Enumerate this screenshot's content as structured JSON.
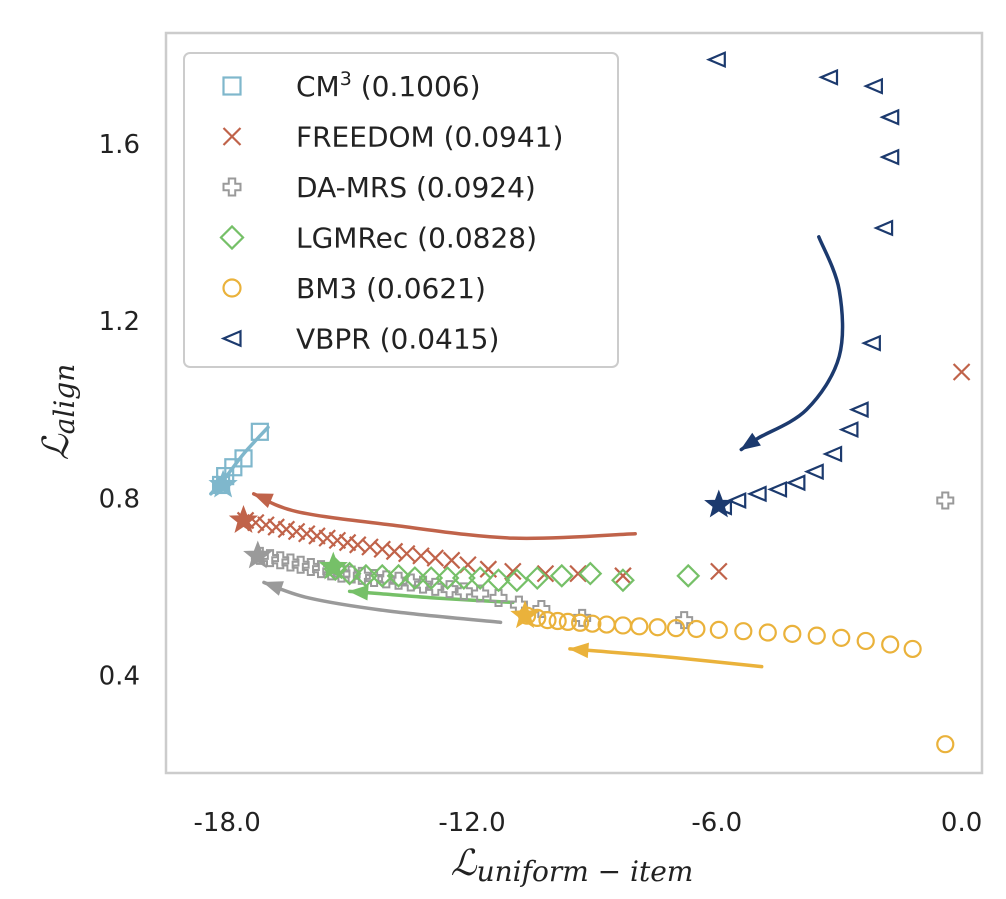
{
  "chart_data": {
    "type": "scatter",
    "title": "",
    "xlabel": {
      "main": "ℒ",
      "sub": "uniform − item"
    },
    "ylabel": {
      "main": "ℒ",
      "sub": "align"
    },
    "xlim": [
      -19.5,
      0.5
    ],
    "ylim": [
      0.18,
      1.85
    ],
    "xticks": [
      -18,
      -12,
      -6,
      0
    ],
    "xtick_labels": [
      "-18.0",
      "-12.0",
      "-6.0",
      "0.0"
    ],
    "yticks": [
      0.4,
      0.8,
      1.2,
      1.6
    ],
    "ytick_labels": [
      "0.4",
      "0.8",
      "1.2",
      "1.6"
    ],
    "grid": false,
    "legend_position": "top-left",
    "series": [
      {
        "name": "CM",
        "sup": "3",
        "score": "(0.1006)",
        "marker": "square",
        "color": "#7fb7cc",
        "points": [
          [
            -18.15,
            0.83
          ],
          [
            -18.05,
            0.85
          ],
          [
            -17.85,
            0.87
          ],
          [
            -17.6,
            0.89
          ],
          [
            -17.2,
            0.95
          ]
        ],
        "best": [
          -18.1,
          0.83
        ],
        "arrow": [
          [
            -17.0,
            0.96
          ],
          [
            -17.6,
            0.9
          ],
          [
            -18.1,
            0.84
          ],
          [
            -18.4,
            0.81
          ]
        ]
      },
      {
        "name": "FREEDOM",
        "sup": "",
        "score": "(0.0941)",
        "marker": "x",
        "color": "#c0634a",
        "points": [
          [
            -17.55,
            0.75
          ],
          [
            -17.3,
            0.745
          ],
          [
            -17.05,
            0.74
          ],
          [
            -16.8,
            0.735
          ],
          [
            -16.55,
            0.73
          ],
          [
            -16.3,
            0.725
          ],
          [
            -16.05,
            0.72
          ],
          [
            -15.8,
            0.715
          ],
          [
            -15.55,
            0.71
          ],
          [
            -15.3,
            0.705
          ],
          [
            -15.05,
            0.7
          ],
          [
            -14.8,
            0.695
          ],
          [
            -14.5,
            0.69
          ],
          [
            -14.2,
            0.685
          ],
          [
            -13.9,
            0.68
          ],
          [
            -13.6,
            0.675
          ],
          [
            -13.25,
            0.67
          ],
          [
            -12.9,
            0.665
          ],
          [
            -12.5,
            0.66
          ],
          [
            -12.1,
            0.65
          ],
          [
            -11.6,
            0.64
          ],
          [
            -11.0,
            0.635
          ],
          [
            -10.2,
            0.63
          ],
          [
            -9.4,
            0.63
          ],
          [
            -8.3,
            0.625
          ],
          [
            -5.95,
            0.635
          ],
          [
            0.0,
            1.085
          ]
        ],
        "best": [
          -17.6,
          0.75
        ],
        "arrow": [
          [
            -8.0,
            0.72
          ],
          [
            -11.0,
            0.71
          ],
          [
            -14.0,
            0.74
          ],
          [
            -16.3,
            0.77
          ],
          [
            -17.35,
            0.81
          ]
        ]
      },
      {
        "name": "DA-MRS",
        "sup": "",
        "score": "(0.0924)",
        "marker": "plus",
        "color": "#9a9a9a",
        "points": [
          [
            -17.2,
            0.67
          ],
          [
            -16.95,
            0.665
          ],
          [
            -16.7,
            0.66
          ],
          [
            -16.45,
            0.655
          ],
          [
            -16.2,
            0.65
          ],
          [
            -15.95,
            0.645
          ],
          [
            -15.7,
            0.64
          ],
          [
            -15.45,
            0.635
          ],
          [
            -15.2,
            0.63
          ],
          [
            -14.95,
            0.628
          ],
          [
            -14.7,
            0.625
          ],
          [
            -14.4,
            0.62
          ],
          [
            -14.1,
            0.617
          ],
          [
            -13.8,
            0.614
          ],
          [
            -13.5,
            0.61
          ],
          [
            -13.2,
            0.605
          ],
          [
            -12.9,
            0.6
          ],
          [
            -12.55,
            0.595
          ],
          [
            -12.2,
            0.59
          ],
          [
            -11.8,
            0.585
          ],
          [
            -11.35,
            0.575
          ],
          [
            -10.85,
            0.56
          ],
          [
            -10.3,
            0.55
          ],
          [
            -9.3,
            0.53
          ],
          [
            -6.8,
            0.525
          ],
          [
            -0.4,
            0.795
          ]
        ],
        "best": [
          -17.25,
          0.67
        ],
        "arrow": [
          [
            -11.3,
            0.52
          ],
          [
            -14.0,
            0.545
          ],
          [
            -16.0,
            0.575
          ],
          [
            -17.1,
            0.61
          ]
        ]
      },
      {
        "name": "LGMRec",
        "sup": "",
        "score": "(0.0828)",
        "marker": "diamond",
        "color": "#76c068",
        "points": [
          [
            -15.35,
            0.64
          ],
          [
            -15.0,
            0.63
          ],
          [
            -14.6,
            0.625
          ],
          [
            -14.2,
            0.625
          ],
          [
            -13.8,
            0.625
          ],
          [
            -13.4,
            0.62
          ],
          [
            -13.0,
            0.62
          ],
          [
            -12.6,
            0.62
          ],
          [
            -12.2,
            0.62
          ],
          [
            -11.8,
            0.62
          ],
          [
            -11.35,
            0.615
          ],
          [
            -10.9,
            0.615
          ],
          [
            -10.4,
            0.62
          ],
          [
            -9.8,
            0.625
          ],
          [
            -9.1,
            0.63
          ],
          [
            -8.3,
            0.615
          ],
          [
            -6.7,
            0.625
          ]
        ],
        "best": [
          -15.4,
          0.645
        ],
        "arrow": [
          [
            -11.0,
            0.565
          ],
          [
            -12.9,
            0.575
          ],
          [
            -14.3,
            0.585
          ],
          [
            -15.0,
            0.59
          ]
        ]
      },
      {
        "name": "BM3",
        "sup": "",
        "score": "(0.0621)",
        "marker": "circle",
        "color": "#eab23b",
        "points": [
          [
            -10.65,
            0.535
          ],
          [
            -10.4,
            0.53
          ],
          [
            -10.15,
            0.525
          ],
          [
            -9.9,
            0.523
          ],
          [
            -9.65,
            0.521
          ],
          [
            -9.35,
            0.519
          ],
          [
            -9.05,
            0.517
          ],
          [
            -8.7,
            0.515
          ],
          [
            -8.3,
            0.513
          ],
          [
            -7.9,
            0.511
          ],
          [
            -7.45,
            0.509
          ],
          [
            -7.0,
            0.507
          ],
          [
            -6.5,
            0.505
          ],
          [
            -5.95,
            0.503
          ],
          [
            -5.35,
            0.5
          ],
          [
            -4.75,
            0.497
          ],
          [
            -4.15,
            0.494
          ],
          [
            -3.55,
            0.49
          ],
          [
            -2.95,
            0.485
          ],
          [
            -2.35,
            0.478
          ],
          [
            -1.75,
            0.47
          ],
          [
            -1.2,
            0.46
          ],
          [
            -0.4,
            0.245
          ]
        ],
        "best": [
          -10.7,
          0.535
        ],
        "arrow": [
          [
            -4.9,
            0.42
          ],
          [
            -7.0,
            0.44
          ],
          [
            -8.9,
            0.455
          ],
          [
            -9.6,
            0.46
          ]
        ]
      },
      {
        "name": "VBPR",
        "sup": "",
        "score": "(0.0415)",
        "marker": "triangle-left",
        "color": "#1c3a6e",
        "points": [
          [
            -5.85,
            0.78
          ],
          [
            -5.5,
            0.795
          ],
          [
            -5.0,
            0.81
          ],
          [
            -4.5,
            0.82
          ],
          [
            -4.05,
            0.835
          ],
          [
            -3.6,
            0.86
          ],
          [
            -3.15,
            0.9
          ],
          [
            -2.75,
            0.955
          ],
          [
            -2.5,
            1.0
          ],
          [
            -2.2,
            1.15
          ],
          [
            -1.9,
            1.41
          ],
          [
            -1.75,
            1.57
          ],
          [
            -1.75,
            1.66
          ],
          [
            -2.15,
            1.73
          ],
          [
            -3.25,
            1.75
          ],
          [
            -6.0,
            1.79
          ]
        ],
        "best": [
          -5.95,
          0.785
        ],
        "arrow": [
          [
            -3.5,
            1.39
          ],
          [
            -3.0,
            1.27
          ],
          [
            -3.0,
            1.12
          ],
          [
            -3.8,
            1.0
          ],
          [
            -5.0,
            0.935
          ],
          [
            -5.4,
            0.91
          ]
        ]
      }
    ]
  }
}
